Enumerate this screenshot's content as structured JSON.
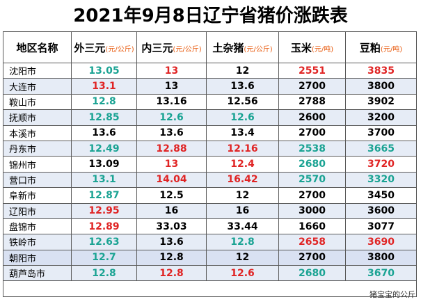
{
  "title": "2021年9月8日辽宁省猪价涨跌表",
  "headers": [
    {
      "label": "地区名称",
      "unit": ""
    },
    {
      "label": "外三元",
      "unit": "(元/公斤)"
    },
    {
      "label": "内三元",
      "unit": "(元/公斤)"
    },
    {
      "label": "土杂猪",
      "unit": "(元/公斤)"
    },
    {
      "label": "玉米",
      "unit": "(元/吨)"
    },
    {
      "label": "豆粕",
      "unit": "(元/吨)"
    }
  ],
  "colors": {
    "up": "#e02424",
    "down": "#1aa393",
    "flat": "#000000"
  },
  "rows": [
    {
      "region": "沈阳市",
      "cells": [
        {
          "v": "13.05",
          "c": "green"
        },
        {
          "v": "13",
          "c": "red"
        },
        {
          "v": "12",
          "c": "black"
        },
        {
          "v": "2551",
          "c": "red"
        },
        {
          "v": "3835",
          "c": "red"
        }
      ]
    },
    {
      "region": "大连市",
      "cells": [
        {
          "v": "13.1",
          "c": "red"
        },
        {
          "v": "13",
          "c": "black"
        },
        {
          "v": "13.6",
          "c": "black"
        },
        {
          "v": "2700",
          "c": "black"
        },
        {
          "v": "3800",
          "c": "black"
        }
      ]
    },
    {
      "region": "鞍山市",
      "cells": [
        {
          "v": "12.8",
          "c": "green"
        },
        {
          "v": "13.16",
          "c": "black"
        },
        {
          "v": "12.56",
          "c": "black"
        },
        {
          "v": "2788",
          "c": "black"
        },
        {
          "v": "3902",
          "c": "black"
        }
      ]
    },
    {
      "region": "抚顺市",
      "cells": [
        {
          "v": "12.85",
          "c": "green"
        },
        {
          "v": "12.6",
          "c": "green"
        },
        {
          "v": "12.6",
          "c": "green"
        },
        {
          "v": "2600",
          "c": "black"
        },
        {
          "v": "3200",
          "c": "black"
        }
      ]
    },
    {
      "region": "本溪市",
      "cells": [
        {
          "v": "13.6",
          "c": "black"
        },
        {
          "v": "13.6",
          "c": "black"
        },
        {
          "v": "13.4",
          "c": "black"
        },
        {
          "v": "2700",
          "c": "black"
        },
        {
          "v": "3700",
          "c": "black"
        }
      ]
    },
    {
      "region": "丹东市",
      "cells": [
        {
          "v": "12.49",
          "c": "green"
        },
        {
          "v": "12.88",
          "c": "red"
        },
        {
          "v": "12.16",
          "c": "red"
        },
        {
          "v": "2538",
          "c": "green"
        },
        {
          "v": "3665",
          "c": "green"
        }
      ]
    },
    {
      "region": "锦州市",
      "cells": [
        {
          "v": "13.09",
          "c": "black"
        },
        {
          "v": "13",
          "c": "red"
        },
        {
          "v": "12.4",
          "c": "red"
        },
        {
          "v": "2680",
          "c": "green"
        },
        {
          "v": "3720",
          "c": "red"
        }
      ]
    },
    {
      "region": "营口市",
      "cells": [
        {
          "v": "13.1",
          "c": "green"
        },
        {
          "v": "14.04",
          "c": "red"
        },
        {
          "v": "16.42",
          "c": "red"
        },
        {
          "v": "2570",
          "c": "green"
        },
        {
          "v": "3320",
          "c": "green"
        }
      ]
    },
    {
      "region": "阜新市",
      "cells": [
        {
          "v": "12.87",
          "c": "green"
        },
        {
          "v": "12.5",
          "c": "black"
        },
        {
          "v": "12",
          "c": "black"
        },
        {
          "v": "2700",
          "c": "black"
        },
        {
          "v": "3450",
          "c": "black"
        }
      ]
    },
    {
      "region": "辽阳市",
      "cells": [
        {
          "v": "12.95",
          "c": "red"
        },
        {
          "v": "16",
          "c": "black"
        },
        {
          "v": "16",
          "c": "black"
        },
        {
          "v": "3000",
          "c": "black"
        },
        {
          "v": "3600",
          "c": "black"
        }
      ]
    },
    {
      "region": "盘锦市",
      "cells": [
        {
          "v": "12.89",
          "c": "red"
        },
        {
          "v": "33.03",
          "c": "black"
        },
        {
          "v": "33.44",
          "c": "black"
        },
        {
          "v": "1660",
          "c": "black"
        },
        {
          "v": "3077",
          "c": "black"
        }
      ]
    },
    {
      "region": "铁岭市",
      "cells": [
        {
          "v": "12.63",
          "c": "green"
        },
        {
          "v": "13.6",
          "c": "black"
        },
        {
          "v": "12.8",
          "c": "green"
        },
        {
          "v": "2658",
          "c": "red"
        },
        {
          "v": "3690",
          "c": "red"
        }
      ]
    },
    {
      "region": "朝阳市",
      "cells": [
        {
          "v": "12.7",
          "c": "green"
        },
        {
          "v": "12.8",
          "c": "black"
        },
        {
          "v": "12",
          "c": "black"
        },
        {
          "v": "2700",
          "c": "black"
        },
        {
          "v": "3800",
          "c": "black"
        }
      ]
    },
    {
      "region": "葫芦岛市",
      "cells": [
        {
          "v": "12.8",
          "c": "green"
        },
        {
          "v": "12.8",
          "c": "red"
        },
        {
          "v": "12.6",
          "c": "red"
        },
        {
          "v": "2680",
          "c": "green"
        },
        {
          "v": "3670",
          "c": "green"
        }
      ]
    }
  ],
  "watermark": "猪宝宝的公斤"
}
